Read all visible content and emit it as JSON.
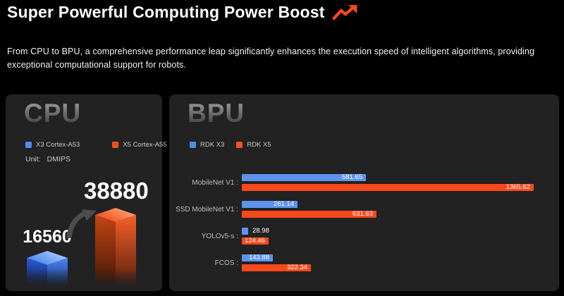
{
  "header": {
    "title": "Super Powerful Computing Power Boost",
    "title_icon": "trending-up-icon",
    "accent_color": "#f2491f",
    "subtitle": "From CPU to BPU, a comprehensive performance leap significantly enhances the execution speed of intelligent algorithms, providing exceptional computational support for robots."
  },
  "colors": {
    "page_bg": "#000000",
    "panel_bg": "#222222",
    "blue_series": "#5e93ee",
    "red_series": "#f8491b",
    "legend_blue": "#4e8cf3",
    "legend_red": "#f3511f"
  },
  "cpu_panel": {
    "heading": "CPU",
    "legend": [
      {
        "label": "X3 Cortex-A53",
        "color": "#4e8cf3"
      },
      {
        "label": "X5 Cortex-A55",
        "color": "#f3511f"
      }
    ],
    "unit_label": "Unit:",
    "unit_value": "DMIPS"
  },
  "bpu_panel": {
    "heading": "BPU",
    "legend": [
      {
        "label": "RDK X3",
        "color": "#4e8cf3"
      },
      {
        "label": "RDK X5",
        "color": "#f3511f"
      }
    ]
  },
  "chart_data": [
    {
      "type": "bar",
      "title": "CPU",
      "orientation": "vertical-3d",
      "unit": "DMIPS",
      "categories": [
        "X3 Cortex-A53",
        "X5 Cortex-A55"
      ],
      "values": [
        16560,
        38880
      ],
      "value_labels": [
        "16560",
        "38880"
      ],
      "colors": [
        "#3f7cf0",
        "#f55e2a"
      ],
      "ylim": [
        0,
        38880
      ],
      "annotations": [
        "growth-arrow between bars"
      ]
    },
    {
      "type": "bar",
      "title": "BPU",
      "orientation": "horizontal",
      "categories": [
        "MobileNet V1",
        "SSD MobileNet V1",
        "YOLOv5-s",
        "FCOS"
      ],
      "category_suffix": " :",
      "series": [
        {
          "name": "RDK X3",
          "color": "#5e93ee",
          "values": [
            581.65,
            261.14,
            28.98,
            143.88
          ]
        },
        {
          "name": "RDK X5",
          "color": "#f8491b",
          "values": [
            1365.62,
            631.63,
            124.46,
            322.34
          ]
        }
      ],
      "xlim": [
        0,
        1400
      ],
      "grid": false,
      "legend_position": "top"
    }
  ]
}
